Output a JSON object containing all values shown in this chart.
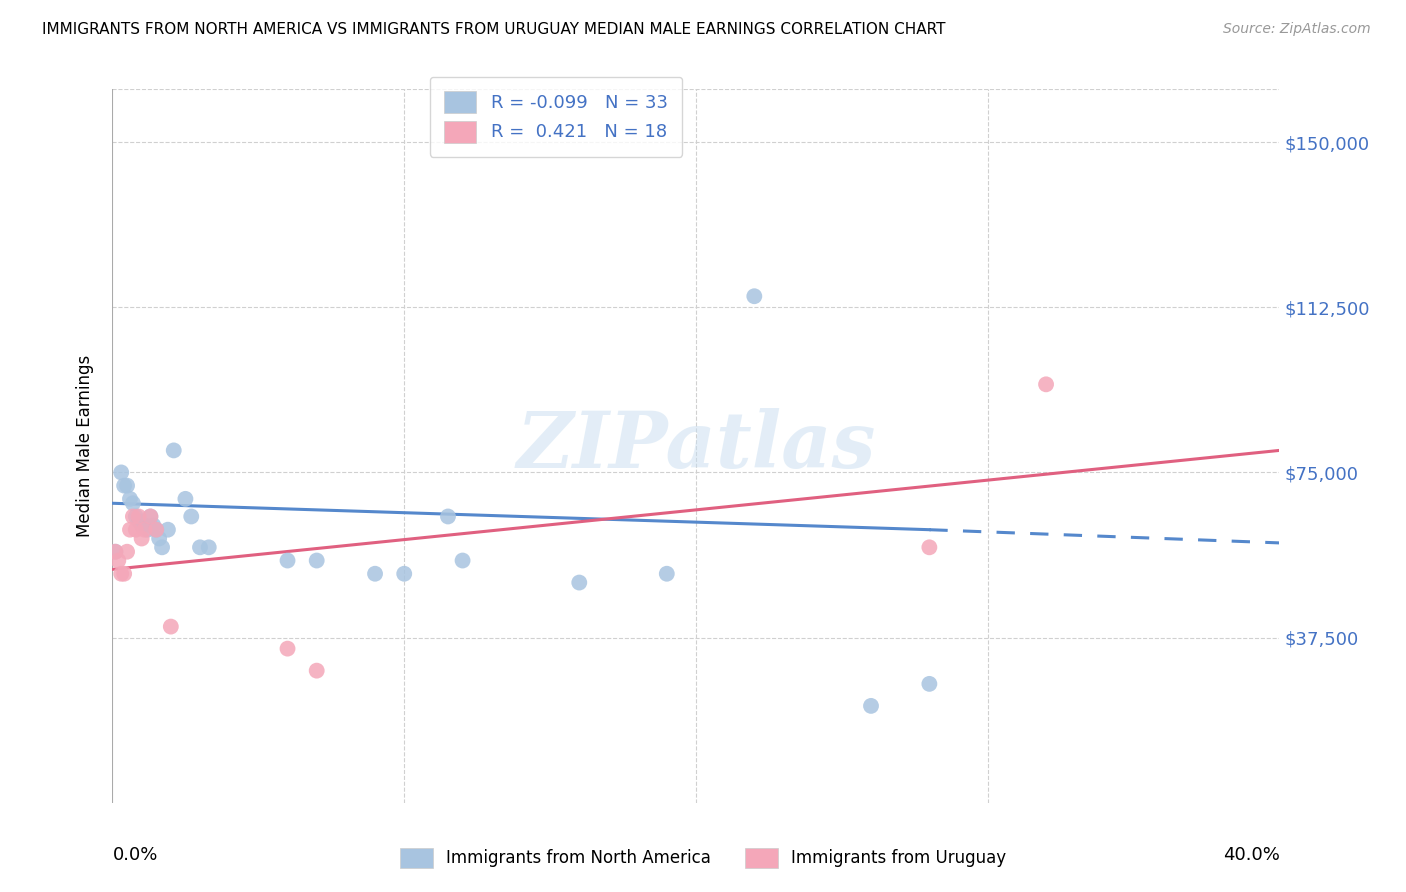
{
  "title": "IMMIGRANTS FROM NORTH AMERICA VS IMMIGRANTS FROM URUGUAY MEDIAN MALE EARNINGS CORRELATION CHART",
  "source": "Source: ZipAtlas.com",
  "ylabel": "Median Male Earnings",
  "ytick_labels": [
    "$37,500",
    "$75,000",
    "$112,500",
    "$150,000"
  ],
  "ytick_values": [
    37500,
    75000,
    112500,
    150000
  ],
  "ylim": [
    0,
    162000
  ],
  "xlim": [
    0.0,
    0.4
  ],
  "r_north_america": "-0.099",
  "n_north_america": "33",
  "r_uruguay": "0.421",
  "n_uruguay": "18",
  "color_north_america": "#a8c4e0",
  "color_uruguay": "#f4a7b9",
  "line_color_north_america": "#5588cc",
  "line_color_uruguay": "#e06080",
  "watermark": "ZIPatlas",
  "na_line_x0": 0.0,
  "na_line_y0": 68000,
  "na_line_x1": 0.28,
  "na_line_y1": 62000,
  "na_line_dash_x1": 0.4,
  "na_line_dash_y1": 59000,
  "uru_line_x0": 0.0,
  "uru_line_y0": 53000,
  "uru_line_x1": 0.4,
  "uru_line_y1": 80000,
  "north_america_x": [
    0.001,
    0.003,
    0.004,
    0.005,
    0.006,
    0.007,
    0.008,
    0.009,
    0.01,
    0.011,
    0.012,
    0.013,
    0.014,
    0.015,
    0.016,
    0.017,
    0.019,
    0.021,
    0.025,
    0.027,
    0.03,
    0.033,
    0.06,
    0.07,
    0.09,
    0.1,
    0.115,
    0.12,
    0.16,
    0.19,
    0.22,
    0.26,
    0.28
  ],
  "north_america_y": [
    57000,
    75000,
    72000,
    72000,
    69000,
    68000,
    65000,
    64000,
    63000,
    63000,
    62000,
    65000,
    63000,
    62000,
    60000,
    58000,
    62000,
    80000,
    69000,
    65000,
    58000,
    58000,
    55000,
    55000,
    52000,
    52000,
    65000,
    55000,
    50000,
    52000,
    115000,
    22000,
    27000
  ],
  "uruguay_x": [
    0.001,
    0.002,
    0.003,
    0.004,
    0.005,
    0.006,
    0.007,
    0.008,
    0.009,
    0.01,
    0.011,
    0.013,
    0.015,
    0.02,
    0.06,
    0.07,
    0.28,
    0.32
  ],
  "uruguay_y": [
    57000,
    55000,
    52000,
    52000,
    57000,
    62000,
    65000,
    62000,
    65000,
    60000,
    62000,
    65000,
    62000,
    40000,
    35000,
    30000,
    58000,
    95000
  ]
}
